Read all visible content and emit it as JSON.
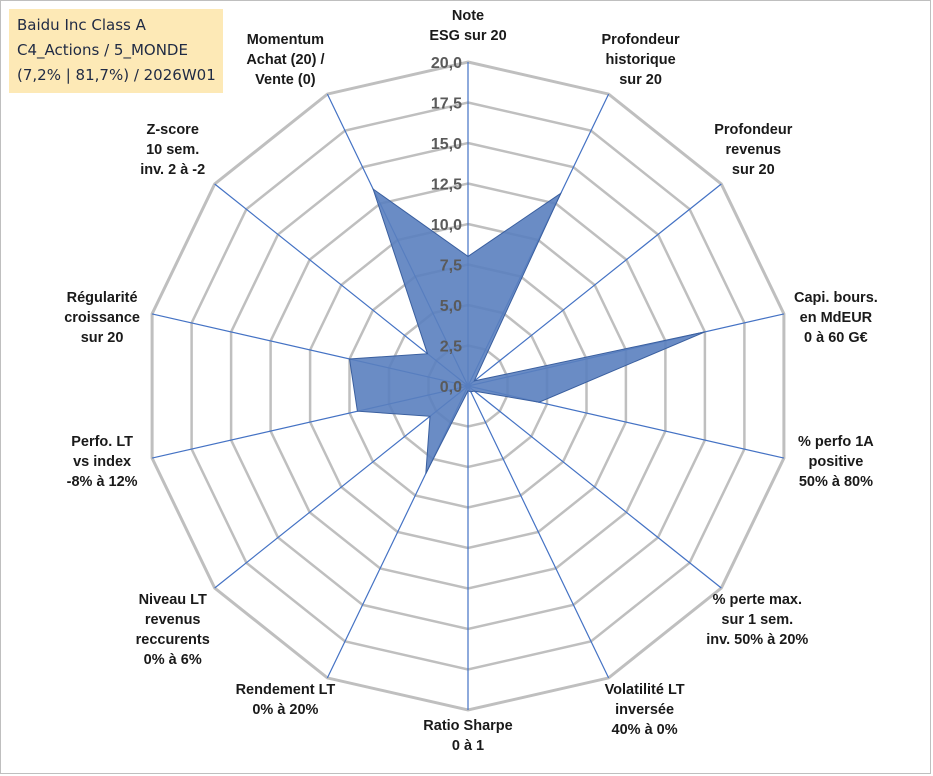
{
  "title_box": {
    "line1": "Baidu Inc Class A",
    "line2": "C4_Actions / 5_MONDE",
    "line3": "(7,2% | 81,7%) / 2026W01"
  },
  "chart_data": {
    "type": "radar",
    "title": "Baidu Inc Class A",
    "range": [
      0,
      20
    ],
    "tick_step": 2.5,
    "tick_labels": [
      "0,0",
      "2,5",
      "5,0",
      "7,5",
      "10,0",
      "12,5",
      "15,0",
      "17,5",
      "20,0"
    ],
    "axes": [
      {
        "label": [
          "Note",
          "ESG sur 20"
        ],
        "value": 8.0
      },
      {
        "label": [
          "Profondeur",
          "historique",
          "sur 20"
        ],
        "value": 13.2
      },
      {
        "label": [
          "Profondeur",
          "revenus",
          "sur 20"
        ],
        "value": 0.5
      },
      {
        "label": [
          "Capi. bours.",
          "en MdEUR",
          "0 à 60 G€"
        ],
        "value": 15.0
      },
      {
        "label": [
          "% perfo 1A",
          "positive",
          "50% à 80%"
        ],
        "value": 4.5
      },
      {
        "label": [
          "% perte max.",
          "sur 1 sem.",
          "inv. 50% à 20%"
        ],
        "value": 0.5
      },
      {
        "label": [
          "Volatilité LT",
          "inversée",
          "40% à 0%"
        ],
        "value": 0.4
      },
      {
        "label": [
          "Ratio Sharpe",
          "0 à 1"
        ],
        "value": 0.3
      },
      {
        "label": [
          "Rendement LT",
          "0% à 20%"
        ],
        "value": 6.0
      },
      {
        "label": [
          "Niveau LT",
          "revenus",
          "reccurents",
          "0% à 6%"
        ],
        "value": 3.0
      },
      {
        "label": [
          "Perfo. LT",
          "vs index",
          "-8% à 12%"
        ],
        "value": 7.0
      },
      {
        "label": [
          "Régularité",
          "croissance",
          "sur 20"
        ],
        "value": 7.5
      },
      {
        "label": [
          "Z-score",
          "10 sem.",
          "inv. 2 à -2"
        ],
        "value": 3.2
      },
      {
        "label": [
          "Momentum",
          "Achat (20) /",
          "Vente (0)"
        ],
        "value": 13.5
      }
    ],
    "series": [
      {
        "name": "Baidu Inc Class A",
        "fill": "#5a7fbf",
        "stroke": "#3a5f9f"
      }
    ],
    "colors": {
      "grid": "#bfbfbf",
      "spoke": "#4472c4"
    }
  }
}
